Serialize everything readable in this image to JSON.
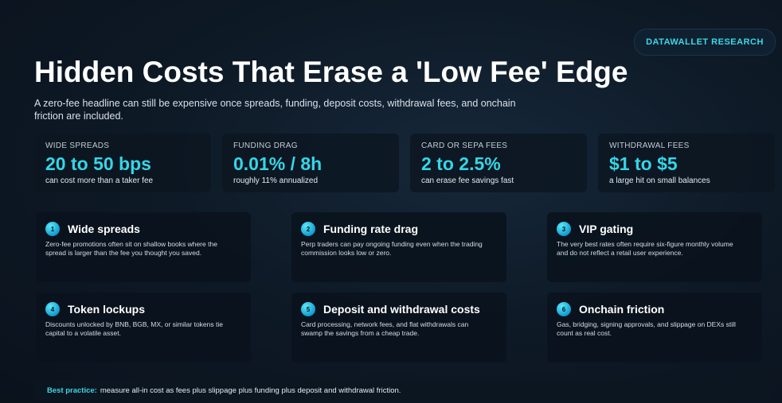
{
  "badge": "DATAWALLET RESEARCH",
  "title": "Hidden Costs That Erase a 'Low Fee' Edge",
  "subtitle": "A zero-fee headline can still be expensive once spreads, funding, deposit costs, withdrawal fees, and onchain friction are included.",
  "stats": [
    {
      "label": "WIDE SPREADS",
      "value": "20 to 50 bps",
      "note": "can cost more than a taker fee"
    },
    {
      "label": "FUNDING DRAG",
      "value": "0.01% / 8h",
      "note": "roughly 11% annualized"
    },
    {
      "label": "CARD OR SEPA FEES",
      "value": "2 to 2.5%",
      "note": "can erase fee savings fast"
    },
    {
      "label": "WITHDRAWAL FEES",
      "value": "$1 to $5",
      "note": "a large hit on small balances"
    }
  ],
  "cards": [
    {
      "num": "1",
      "title": "Wide spreads",
      "body": "Zero-fee promotions often sit on shallow books where the spread is larger than the fee you thought you saved."
    },
    {
      "num": "2",
      "title": "Funding rate drag",
      "body": "Perp traders can pay ongoing funding even when the trading commission looks low or zero."
    },
    {
      "num": "3",
      "title": "VIP gating",
      "body": "The very best rates often require six-figure monthly volume and do not reflect a retail user experience."
    },
    {
      "num": "4",
      "title": "Token lockups",
      "body": "Discounts unlocked by BNB, BGB, MX, or similar tokens tie capital to a volatile asset."
    },
    {
      "num": "5",
      "title": "Deposit and withdrawal costs",
      "body": "Card processing, network fees, and flat withdrawals can swamp the savings from a cheap trade."
    },
    {
      "num": "6",
      "title": "Onchain friction",
      "body": "Gas, bridging, signing approvals, and slippage on DEXs still count as real cost."
    }
  ],
  "footer": {
    "label": "Best practice:",
    "text": "measure all-in cost as fees plus slippage plus funding plus deposit and withdrawal friction."
  },
  "colors": {
    "accent": "#34d6e8",
    "background": "#0e1a27",
    "card": "#0a131d"
  }
}
